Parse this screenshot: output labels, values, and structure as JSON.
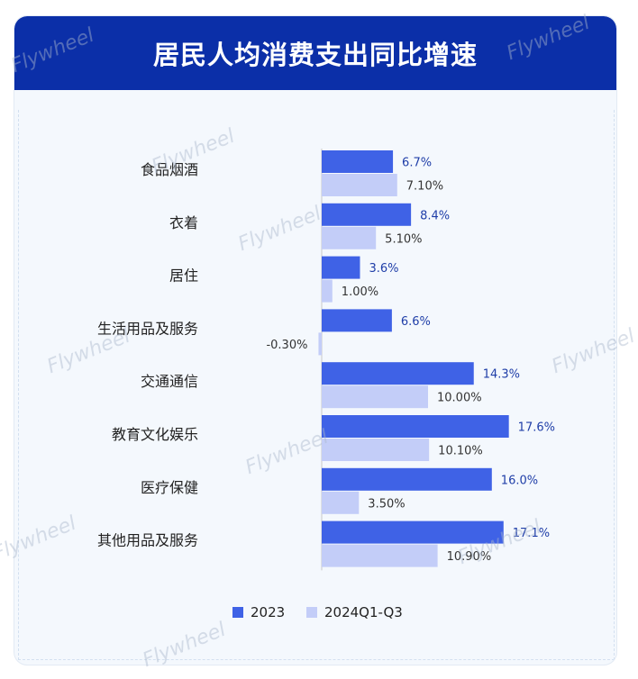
{
  "header": {
    "title": "居民人均消费支出同比增速"
  },
  "watermark": "Flywheel",
  "chart_data": {
    "type": "bar",
    "orientation": "horizontal",
    "categories": [
      "食品烟酒",
      "衣着",
      "居住",
      "生活用品及服务",
      "交通通信",
      "教育文化娱乐",
      "医疗保健",
      "其他用品及服务"
    ],
    "series": [
      {
        "name": "2023",
        "values": [
          6.7,
          8.4,
          3.6,
          6.6,
          14.3,
          17.6,
          16.0,
          17.1
        ],
        "labels": [
          "6.7%",
          "8.4%",
          "3.6%",
          "6.6%",
          "14.3%",
          "17.6%",
          "16.0%",
          "17.1%"
        ],
        "color": "#3f62e6",
        "label_color": "#1f3ea8"
      },
      {
        "name": "2024Q1-Q3",
        "values": [
          7.1,
          5.1,
          1.0,
          -0.3,
          10.0,
          10.1,
          3.5,
          10.9
        ],
        "labels": [
          "7.10%",
          "5.10%",
          "1.00%",
          "-0.30%",
          "10.00%",
          "10.10%",
          "3.50%",
          "10.90%"
        ],
        "color": "#c3cdf8",
        "label_color": "#333333"
      }
    ],
    "legend": {
      "position": "bottom"
    },
    "grid": false
  }
}
